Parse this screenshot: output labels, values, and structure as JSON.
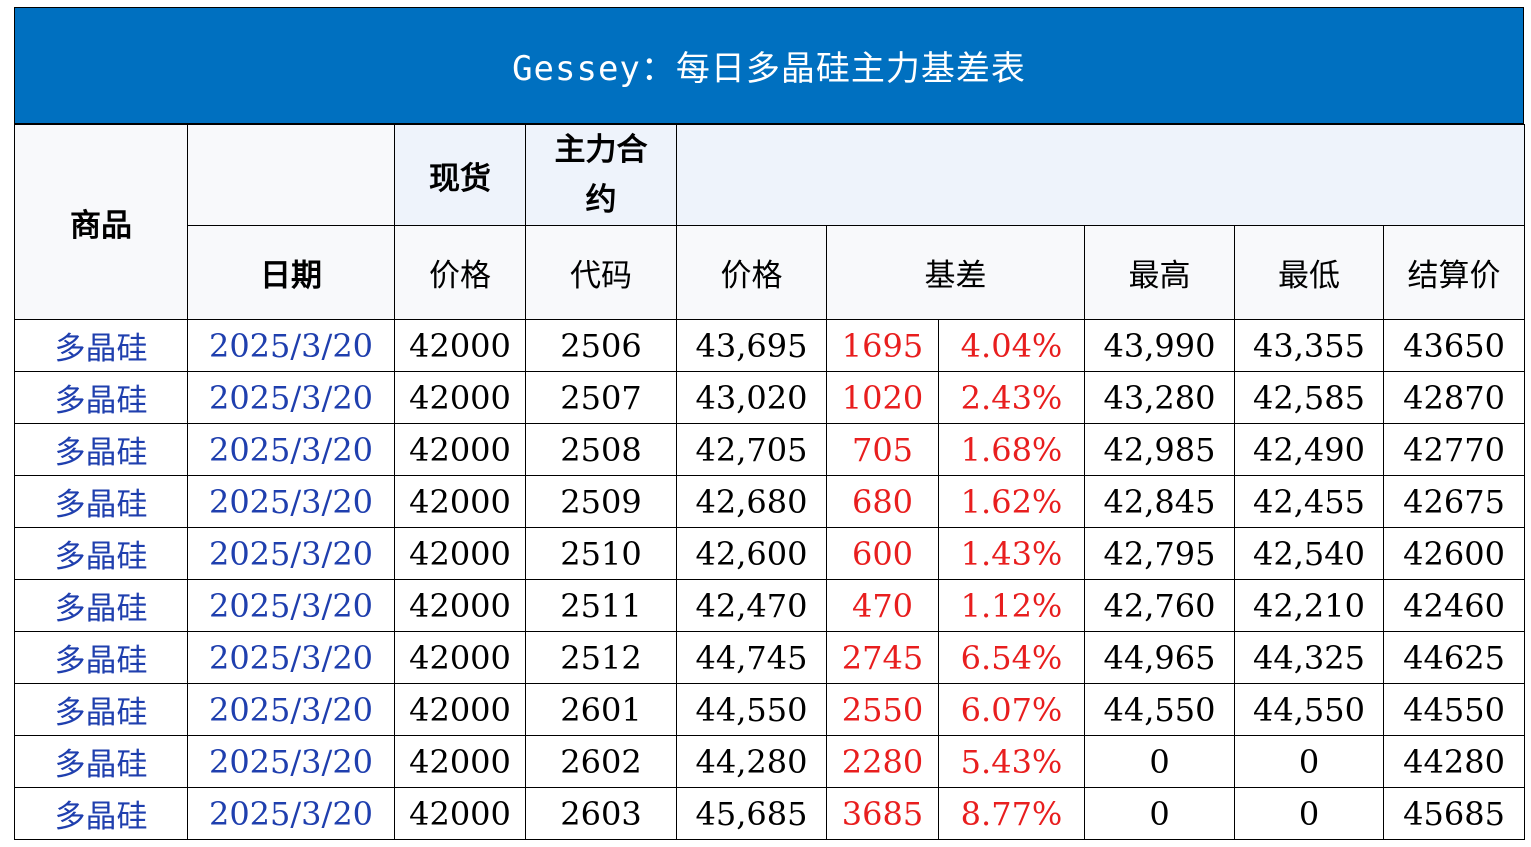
{
  "title": "Gessey：每日多晶硅主力基差表",
  "header": {
    "commodity": "商品",
    "spot": "现货",
    "main_contract": "主力合约",
    "date": "日期",
    "spot_price": "价格",
    "code": "代码",
    "futures_price": "价格",
    "basis": "基差",
    "high": "最高",
    "low": "最低",
    "settle": "结算价"
  },
  "colors": {
    "title_bg": "#0070c0",
    "basis_red": "#e81e1e",
    "link_blue": "#1f3fae"
  },
  "rows": [
    {
      "commodity": "多晶硅",
      "date": "2025/3/20",
      "spot": "42000",
      "code": "2506",
      "price": "43,695",
      "basis": "1695",
      "basis_pct": "4.04%",
      "high": "43,990",
      "low": "43,355",
      "settle": "43650"
    },
    {
      "commodity": "多晶硅",
      "date": "2025/3/20",
      "spot": "42000",
      "code": "2507",
      "price": "43,020",
      "basis": "1020",
      "basis_pct": "2.43%",
      "high": "43,280",
      "low": "42,585",
      "settle": "42870"
    },
    {
      "commodity": "多晶硅",
      "date": "2025/3/20",
      "spot": "42000",
      "code": "2508",
      "price": "42,705",
      "basis": "705",
      "basis_pct": "1.68%",
      "high": "42,985",
      "low": "42,490",
      "settle": "42770"
    },
    {
      "commodity": "多晶硅",
      "date": "2025/3/20",
      "spot": "42000",
      "code": "2509",
      "price": "42,680",
      "basis": "680",
      "basis_pct": "1.62%",
      "high": "42,845",
      "low": "42,455",
      "settle": "42675"
    },
    {
      "commodity": "多晶硅",
      "date": "2025/3/20",
      "spot": "42000",
      "code": "2510",
      "price": "42,600",
      "basis": "600",
      "basis_pct": "1.43%",
      "high": "42,795",
      "low": "42,540",
      "settle": "42600"
    },
    {
      "commodity": "多晶硅",
      "date": "2025/3/20",
      "spot": "42000",
      "code": "2511",
      "price": "42,470",
      "basis": "470",
      "basis_pct": "1.12%",
      "high": "42,760",
      "low": "42,210",
      "settle": "42460"
    },
    {
      "commodity": "多晶硅",
      "date": "2025/3/20",
      "spot": "42000",
      "code": "2512",
      "price": "44,745",
      "basis": "2745",
      "basis_pct": "6.54%",
      "high": "44,965",
      "low": "44,325",
      "settle": "44625"
    },
    {
      "commodity": "多晶硅",
      "date": "2025/3/20",
      "spot": "42000",
      "code": "2601",
      "price": "44,550",
      "basis": "2550",
      "basis_pct": "6.07%",
      "high": "44,550",
      "low": "44,550",
      "settle": "44550"
    },
    {
      "commodity": "多晶硅",
      "date": "2025/3/20",
      "spot": "42000",
      "code": "2602",
      "price": "44,280",
      "basis": "2280",
      "basis_pct": "5.43%",
      "high": "0",
      "low": "0",
      "settle": "44280"
    },
    {
      "commodity": "多晶硅",
      "date": "2025/3/20",
      "spot": "42000",
      "code": "2603",
      "price": "45,685",
      "basis": "3685",
      "basis_pct": "8.77%",
      "high": "0",
      "low": "0",
      "settle": "45685"
    }
  ]
}
